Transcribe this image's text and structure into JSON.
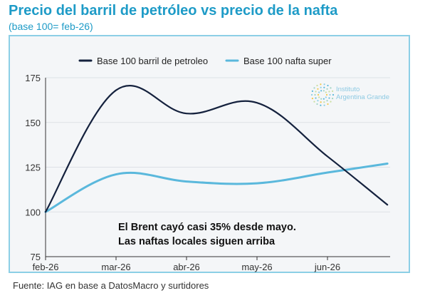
{
  "title": "Precio del barril de petróleo vs precio de la nafta",
  "subtitle": "(base 100= feb-26)",
  "source": "Fuente: IAG en base a DatosMacro y surtidores",
  "annotation": {
    "line1": "El Brent cayó casi 35% desde mayo.",
    "line2": "Las naftas locales siguen arriba"
  },
  "watermark": {
    "line1": "Instituto",
    "line2": "Argentina Grande"
  },
  "colors": {
    "title": "#1e9bc7",
    "panel_border": "#8ccfe6",
    "panel_bg": "#f4f6f8",
    "oil": "#14213d",
    "nafta": "#5ab8dc"
  },
  "chart_data": {
    "type": "line",
    "x": [
      "feb-26",
      "mar-26",
      "abr-26",
      "may-26",
      "jun-26"
    ],
    "ylim": [
      75,
      175
    ],
    "yticks": [
      75,
      100,
      125,
      150,
      175
    ],
    "grid": true,
    "legend": "top",
    "series": [
      {
        "name": "Base 100 barril de petroleo",
        "color": "#14213d",
        "points": [
          {
            "x": 0,
            "y": 100
          },
          {
            "x": 1,
            "y": 168
          },
          {
            "x": 2,
            "y": 155
          },
          {
            "x": 3,
            "y": 161
          },
          {
            "x": 4,
            "y": 131
          },
          {
            "x": 4.85,
            "y": 104
          }
        ]
      },
      {
        "name": "Base 100 nafta super",
        "color": "#5ab8dc",
        "points": [
          {
            "x": 0,
            "y": 100
          },
          {
            "x": 1,
            "y": 121
          },
          {
            "x": 2,
            "y": 117
          },
          {
            "x": 3,
            "y": 116
          },
          {
            "x": 4,
            "y": 122
          },
          {
            "x": 4.85,
            "y": 127
          }
        ]
      }
    ]
  }
}
